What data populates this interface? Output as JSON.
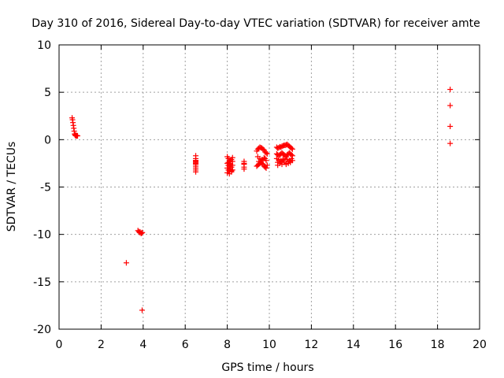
{
  "chart_data": {
    "type": "scatter",
    "title": "Day 310 of 2016, Sidereal Day-to-day VTEC variation (SDTVAR) for receiver amte",
    "xlabel": "GPS time / hours",
    "ylabel": "SDTVAR / TECUs",
    "xlim": [
      0,
      20
    ],
    "ylim": [
      -20,
      10
    ],
    "xticks": [
      0,
      2,
      4,
      6,
      8,
      10,
      12,
      14,
      16,
      18,
      20
    ],
    "yticks": [
      -20,
      -15,
      -10,
      -5,
      0,
      5,
      10
    ],
    "grid": true,
    "marker": "plus",
    "color": "#ff0000",
    "series": [
      {
        "x": [
          0.62,
          0.64,
          0.66,
          0.68,
          0.7,
          0.72,
          0.74,
          0.76,
          0.78,
          0.8,
          0.82,
          0.84,
          0.86,
          0.88,
          3.2,
          3.75,
          3.8,
          3.83,
          3.86,
          3.9,
          3.93,
          3.96,
          3.95,
          6.5,
          6.5,
          6.5,
          6.5,
          6.5,
          6.5,
          6.5,
          6.5,
          6.5,
          6.5,
          6.5,
          6.5,
          8.0,
          8.05,
          8.1,
          8.15,
          8.2,
          8.25,
          8.0,
          8.05,
          8.1,
          8.15,
          8.2,
          8.25,
          8.0,
          8.05,
          8.1,
          8.15,
          8.2,
          8.25,
          8.0,
          8.1,
          8.2,
          8.05,
          8.15,
          8.25,
          8.8,
          8.8,
          8.8,
          8.8,
          8.8,
          9.4,
          9.45,
          9.5,
          9.55,
          9.6,
          9.65,
          9.7,
          9.75,
          9.8,
          9.85,
          9.9,
          9.4,
          9.45,
          9.5,
          9.55,
          9.6,
          9.65,
          9.7,
          9.75,
          9.8,
          9.85,
          9.9,
          9.45,
          9.55,
          9.65,
          9.75,
          9.85,
          9.5,
          9.6,
          9.7,
          9.8,
          10.35,
          10.4,
          10.45,
          10.5,
          10.55,
          10.6,
          10.65,
          10.7,
          10.75,
          10.8,
          10.85,
          10.9,
          10.95,
          11.0,
          11.05,
          11.1,
          10.35,
          10.4,
          10.45,
          10.5,
          10.55,
          10.6,
          10.65,
          10.7,
          10.75,
          10.8,
          10.85,
          10.9,
          10.95,
          11.0,
          11.05,
          11.1,
          10.35,
          10.45,
          10.55,
          10.65,
          10.75,
          10.85,
          10.95,
          11.05,
          10.4,
          10.5,
          10.6,
          10.7,
          10.8,
          10.9,
          11.0,
          11.1,
          10.4,
          10.6,
          10.8,
          11.0,
          18.6,
          18.6,
          18.6,
          18.6
        ],
        "y": [
          2.3,
          2.1,
          1.8,
          1.5,
          1.2,
          0.9,
          0.6,
          0.5,
          0.45,
          0.4,
          0.45,
          0.4,
          0.42,
          0.4,
          -13.0,
          -9.6,
          -9.7,
          -9.8,
          -9.75,
          -9.9,
          -9.85,
          -9.8,
          -18.0,
          -1.7,
          -2.0,
          -2.2,
          -2.3,
          -2.4,
          -2.5,
          -2.6,
          -2.8,
          -3.0,
          -3.2,
          -3.4,
          -2.2,
          -1.8,
          -2.0,
          -2.2,
          -2.3,
          -2.1,
          -1.9,
          -2.5,
          -2.7,
          -2.8,
          -2.6,
          -2.9,
          -2.7,
          -3.0,
          -3.2,
          -3.3,
          -3.1,
          -3.4,
          -3.2,
          -3.5,
          -3.6,
          -3.3,
          -2.4,
          -2.5,
          -2.3,
          -2.3,
          -2.6,
          -2.9,
          -3.1,
          -2.5,
          -1.2,
          -1.0,
          -0.9,
          -0.8,
          -0.85,
          -0.9,
          -1.0,
          -1.1,
          -1.3,
          -1.4,
          -1.5,
          -2.8,
          -2.7,
          -2.6,
          -2.5,
          -2.4,
          -2.5,
          -2.6,
          -2.8,
          -2.9,
          -3.0,
          -2.7,
          -1.8,
          -2.0,
          -2.1,
          -1.9,
          -2.2,
          -2.3,
          -2.4,
          -2.2,
          -2.0,
          -0.8,
          -0.9,
          -0.85,
          -0.75,
          -0.8,
          -0.7,
          -0.65,
          -0.6,
          -0.6,
          -0.55,
          -0.5,
          -0.6,
          -0.7,
          -0.8,
          -0.9,
          -1.0,
          -1.5,
          -1.6,
          -1.7,
          -1.6,
          -1.5,
          -1.4,
          -1.5,
          -1.6,
          -1.7,
          -1.8,
          -1.6,
          -1.5,
          -1.4,
          -1.5,
          -1.6,
          -1.7,
          -2.0,
          -2.1,
          -2.2,
          -2.1,
          -2.0,
          -2.1,
          -2.2,
          -2.0,
          -2.4,
          -2.5,
          -2.3,
          -2.4,
          -2.6,
          -2.5,
          -2.3,
          -2.2,
          -2.7,
          -2.6,
          -2.5,
          -2.4,
          5.3,
          3.6,
          1.4,
          -0.4
        ]
      }
    ]
  }
}
